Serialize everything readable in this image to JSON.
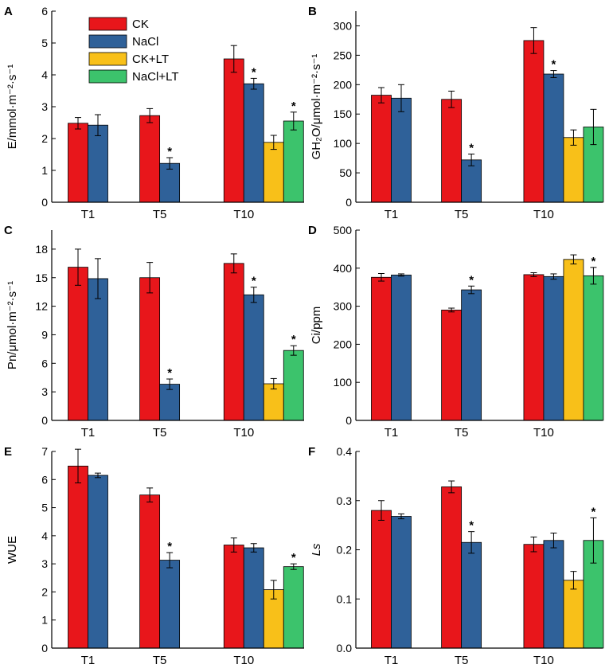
{
  "legend": [
    "CK",
    "NaCl",
    "CK+LT",
    "NaCl+LT"
  ],
  "colors": {
    "CK": "#e8161b",
    "NaCl": "#2f6199",
    "CK+LT": "#f8c019",
    "NaCl+LT": "#3cc36c"
  },
  "chart_data": [
    {
      "panel": "A",
      "type": "bar",
      "categories": [
        "T1",
        "T5",
        "T10"
      ],
      "ylabel": "E/mmol·m⁻²·s⁻¹",
      "ylim": [
        0,
        6
      ],
      "yticks": [
        0,
        1,
        2,
        3,
        4,
        5,
        6
      ],
      "series": [
        {
          "name": "CK",
          "values": [
            2.48,
            2.72,
            4.5
          ],
          "errors": [
            0.18,
            0.22,
            0.42
          ]
        },
        {
          "name": "NaCl",
          "values": [
            2.42,
            1.22,
            3.72
          ],
          "errors": [
            0.33,
            0.18,
            0.17
          ]
        },
        {
          "name": "CK+LT",
          "values": [
            null,
            null,
            1.88
          ],
          "errors": [
            null,
            null,
            0.22
          ]
        },
        {
          "name": "NaCl+LT",
          "values": [
            null,
            null,
            2.55
          ],
          "errors": [
            null,
            null,
            0.28
          ]
        }
      ],
      "significance": [
        [
          1,
          1
        ],
        [
          2,
          1
        ],
        [
          2,
          3
        ]
      ]
    },
    {
      "panel": "B",
      "type": "bar",
      "categories": [
        "T1",
        "T5",
        "T10"
      ],
      "ylabel": "GH₂O/μmol·m⁻²·s⁻¹",
      "ylim": [
        0,
        325
      ],
      "yticks": [
        0,
        50,
        100,
        150,
        200,
        250,
        300
      ],
      "series": [
        {
          "name": "CK",
          "values": [
            182,
            175,
            275
          ],
          "errors": [
            13,
            14,
            22
          ]
        },
        {
          "name": "NaCl",
          "values": [
            177,
            72,
            218
          ],
          "errors": [
            23,
            10,
            6
          ]
        },
        {
          "name": "CK+LT",
          "values": [
            null,
            null,
            110
          ],
          "errors": [
            null,
            null,
            13
          ]
        },
        {
          "name": "NaCl+LT",
          "values": [
            null,
            null,
            128
          ],
          "errors": [
            null,
            null,
            30
          ]
        }
      ],
      "significance": [
        [
          1,
          1
        ],
        [
          2,
          1
        ]
      ]
    },
    {
      "panel": "C",
      "type": "bar",
      "categories": [
        "T1",
        "T5",
        "T10"
      ],
      "ylabel": "Pn/μmol·m⁻²·s⁻¹",
      "ylim": [
        0,
        20
      ],
      "yticks": [
        0,
        3,
        6,
        9,
        12,
        15,
        18
      ],
      "series": [
        {
          "name": "CK",
          "values": [
            16.1,
            15.0,
            16.5
          ],
          "errors": [
            1.9,
            1.6,
            1.0
          ]
        },
        {
          "name": "NaCl",
          "values": [
            14.9,
            3.8,
            13.2
          ],
          "errors": [
            2.1,
            0.55,
            0.8
          ]
        },
        {
          "name": "CK+LT",
          "values": [
            null,
            null,
            3.85
          ],
          "errors": [
            null,
            null,
            0.55
          ]
        },
        {
          "name": "NaCl+LT",
          "values": [
            null,
            null,
            7.35
          ],
          "errors": [
            null,
            null,
            0.5
          ]
        }
      ],
      "significance": [
        [
          1,
          1
        ],
        [
          2,
          1
        ],
        [
          2,
          3
        ]
      ]
    },
    {
      "panel": "D",
      "type": "bar",
      "categories": [
        "T1",
        "T5",
        "T10"
      ],
      "ylabel": "Ci/ppm",
      "ylim": [
        0,
        500
      ],
      "yticks": [
        0,
        100,
        200,
        300,
        400,
        500
      ],
      "series": [
        {
          "name": "CK",
          "values": [
            376,
            290,
            383
          ],
          "errors": [
            10,
            5,
            5
          ]
        },
        {
          "name": "NaCl",
          "values": [
            382,
            343,
            378
          ],
          "errors": [
            3,
            10,
            7
          ]
        },
        {
          "name": "CK+LT",
          "values": [
            null,
            null,
            423
          ],
          "errors": [
            null,
            null,
            12
          ]
        },
        {
          "name": "NaCl+LT",
          "values": [
            null,
            null,
            380
          ],
          "errors": [
            null,
            null,
            22
          ]
        }
      ],
      "significance": [
        [
          1,
          1
        ],
        [
          2,
          3
        ]
      ]
    },
    {
      "panel": "E",
      "type": "bar",
      "categories": [
        "T1",
        "T5",
        "T10"
      ],
      "ylabel": "WUE",
      "ylim": [
        0,
        7
      ],
      "yticks": [
        0,
        1,
        2,
        3,
        4,
        5,
        6,
        7
      ],
      "series": [
        {
          "name": "CK",
          "values": [
            6.48,
            5.45,
            3.67
          ],
          "errors": [
            0.6,
            0.25,
            0.25
          ]
        },
        {
          "name": "NaCl",
          "values": [
            6.15,
            3.13,
            3.57
          ],
          "errors": [
            0.08,
            0.27,
            0.15
          ]
        },
        {
          "name": "CK+LT",
          "values": [
            null,
            null,
            2.08
          ],
          "errors": [
            null,
            null,
            0.33
          ]
        },
        {
          "name": "NaCl+LT",
          "values": [
            null,
            null,
            2.9
          ],
          "errors": [
            null,
            null,
            0.1
          ]
        }
      ],
      "significance": [
        [
          1,
          1
        ],
        [
          2,
          3
        ]
      ]
    },
    {
      "panel": "F",
      "type": "bar",
      "categories": [
        "T1",
        "T5",
        "T10"
      ],
      "ylabel": "Ls",
      "ylim": [
        0,
        0.4
      ],
      "yticks": [
        0.0,
        0.1,
        0.2,
        0.3,
        0.4
      ],
      "series": [
        {
          "name": "CK",
          "values": [
            0.28,
            0.328,
            0.211
          ],
          "errors": [
            0.02,
            0.012,
            0.015
          ]
        },
        {
          "name": "NaCl",
          "values": [
            0.268,
            0.215,
            0.219
          ],
          "errors": [
            0.005,
            0.022,
            0.015
          ]
        },
        {
          "name": "CK+LT",
          "values": [
            null,
            null,
            0.138
          ],
          "errors": [
            null,
            null,
            0.018
          ]
        },
        {
          "name": "NaCl+LT",
          "values": [
            null,
            null,
            0.219
          ],
          "errors": [
            null,
            null,
            0.046
          ]
        }
      ],
      "significance": [
        [
          1,
          1
        ],
        [
          2,
          3
        ]
      ]
    }
  ]
}
